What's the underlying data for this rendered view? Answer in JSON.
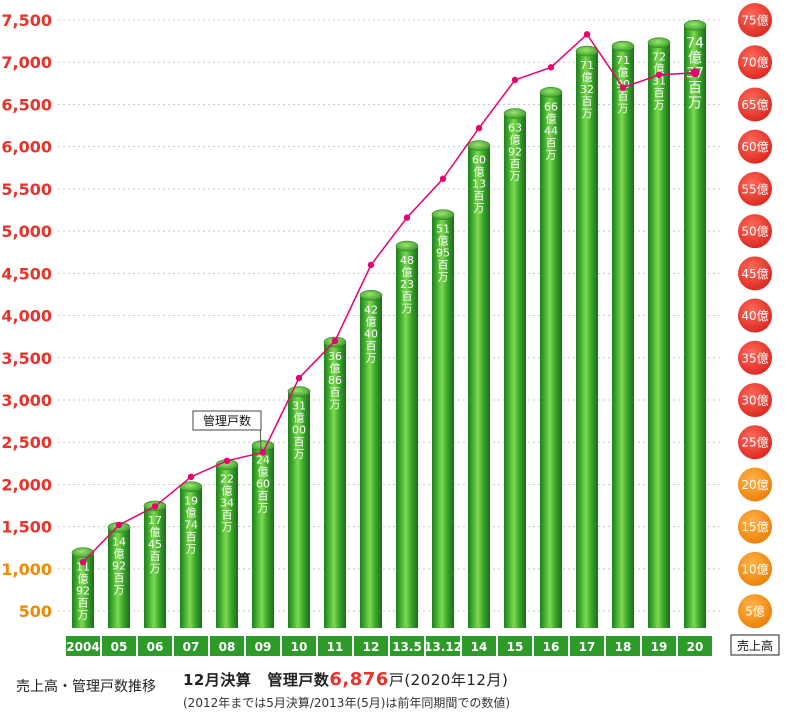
{
  "chart_data": {
    "type": "bar",
    "categories": [
      "2004",
      "05",
      "06",
      "07",
      "08",
      "09",
      "10",
      "11",
      "12",
      "13.5",
      "13.12",
      "14",
      "15",
      "16",
      "17",
      "18",
      "19",
      "20"
    ],
    "series": [
      {
        "name": "売上高",
        "type": "bar",
        "axis": "right",
        "values": [
          11.92,
          14.92,
          17.45,
          19.74,
          22.34,
          24.6,
          31.0,
          36.86,
          42.4,
          48.23,
          51.95,
          60.13,
          63.92,
          66.44,
          71.32,
          71.9,
          72.31,
          74.37
        ],
        "labels": [
          [
            "11",
            "億",
            "92",
            "百",
            "万"
          ],
          [
            "14",
            "億",
            "92",
            "百",
            "万"
          ],
          [
            "17",
            "億",
            "45",
            "百",
            "万"
          ],
          [
            "19",
            "億",
            "74",
            "百",
            "万"
          ],
          [
            "22",
            "億",
            "34",
            "百",
            "万"
          ],
          [
            "24",
            "億",
            "60",
            "百",
            "万"
          ],
          [
            "31",
            "億",
            "00",
            "百",
            "万"
          ],
          [
            "36",
            "億",
            "86",
            "百",
            "万"
          ],
          [
            "42",
            "億",
            "40",
            "百",
            "万"
          ],
          [
            "48",
            "億",
            "23",
            "百",
            "万"
          ],
          [
            "51",
            "億",
            "95",
            "百",
            "万"
          ],
          [
            "60",
            "億",
            "13",
            "百",
            "万"
          ],
          [
            "63",
            "億",
            "92",
            "百",
            "万"
          ],
          [
            "66",
            "億",
            "44",
            "百",
            "万"
          ],
          [
            "71",
            "億",
            "32",
            "百",
            "万"
          ],
          [
            "71",
            "億",
            "90",
            "百",
            "万"
          ],
          [
            "72",
            "億",
            "31",
            "百",
            "万"
          ],
          [
            "74",
            "億",
            "37",
            "百",
            "万"
          ]
        ]
      },
      {
        "name": "管理戸数",
        "type": "line",
        "axis": "left",
        "values": [
          1080,
          1520,
          1740,
          2090,
          2280,
          2380,
          3260,
          3700,
          4600,
          5160,
          5620,
          6220,
          6790,
          6940,
          7330,
          6700,
          6850,
          6876
        ]
      }
    ],
    "left_axis": {
      "ticks": [
        "500",
        "1,000",
        "1,500",
        "2,000",
        "2,500",
        "3,000",
        "3,500",
        "4,000",
        "4,500",
        "5,000",
        "5,500",
        "6,000",
        "6,500",
        "7,000",
        "7,500"
      ],
      "range": [
        300,
        7500
      ],
      "color_low": "#f08a00",
      "color_high": "#e8332a"
    },
    "right_axis": {
      "ticks": [
        "5億",
        "10億",
        "15億",
        "20億",
        "25億",
        "30億",
        "35億",
        "40億",
        "45億",
        "50億",
        "55億",
        "60億",
        "65億",
        "70億",
        "75億"
      ],
      "range": [
        3,
        75
      ],
      "label": "売上高"
    },
    "line_label": "管理戸数",
    "colors": {
      "bar": "#3aa52d",
      "line": "#e8006e",
      "grid": "#c8c8c8",
      "cat_box": "#2e9a2a",
      "badge_low": "#f08a00",
      "badge_high": "#e8332a"
    }
  },
  "captions": {
    "left": "売上高・管理戸数推移",
    "main_prefix": "12月決算",
    "main_mid": "管理戸数",
    "main_number": "6,876",
    "main_suffix": "戸(2020年12月)",
    "note": "(2012年までは5月決算/2013年(5月)は前年同期間での数値)"
  }
}
